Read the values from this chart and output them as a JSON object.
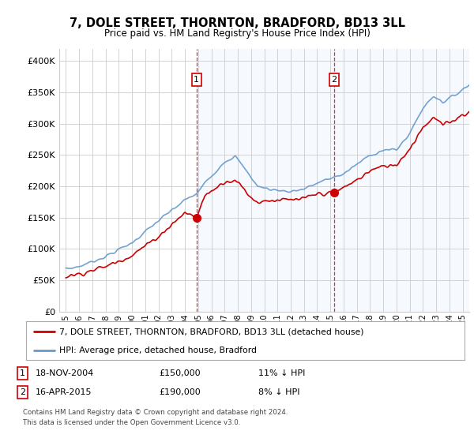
{
  "title": "7, DOLE STREET, THORNTON, BRADFORD, BD13 3LL",
  "subtitle": "Price paid vs. HM Land Registry's House Price Index (HPI)",
  "ylabel_ticks": [
    "£0",
    "£50K",
    "£100K",
    "£150K",
    "£200K",
    "£250K",
    "£300K",
    "£350K",
    "£400K"
  ],
  "ytick_values": [
    0,
    50000,
    100000,
    150000,
    200000,
    250000,
    300000,
    350000,
    400000
  ],
  "ylim": [
    0,
    420000
  ],
  "xlim_start": 1994.5,
  "xlim_end": 2025.5,
  "hpi_color": "#6699cc",
  "price_color": "#cc0000",
  "sale1_x": 2004.88,
  "sale1_y": 150000,
  "sale2_x": 2015.29,
  "sale2_y": 190000,
  "shade_color": "#ddeeff",
  "background_color": "#ffffff",
  "plot_bg_color": "#ffffff",
  "grid_color": "#cccccc",
  "legend_label1": "7, DOLE STREET, THORNTON, BRADFORD, BD13 3LL (detached house)",
  "legend_label2": "HPI: Average price, detached house, Bradford",
  "note1_label": "1",
  "note1_date": "18-NOV-2004",
  "note1_price": "£150,000",
  "note1_hpi": "11% ↓ HPI",
  "note2_label": "2",
  "note2_date": "16-APR-2015",
  "note2_price": "£190,000",
  "note2_hpi": "8% ↓ HPI",
  "footer": "Contains HM Land Registry data © Crown copyright and database right 2024.\nThis data is licensed under the Open Government Licence v3.0.",
  "xtick_years": [
    1995,
    1996,
    1997,
    1998,
    1999,
    2000,
    2001,
    2002,
    2003,
    2004,
    2005,
    2006,
    2007,
    2008,
    2009,
    2010,
    2011,
    2012,
    2013,
    2014,
    2015,
    2016,
    2017,
    2018,
    2019,
    2020,
    2021,
    2022,
    2023,
    2024,
    2025
  ]
}
